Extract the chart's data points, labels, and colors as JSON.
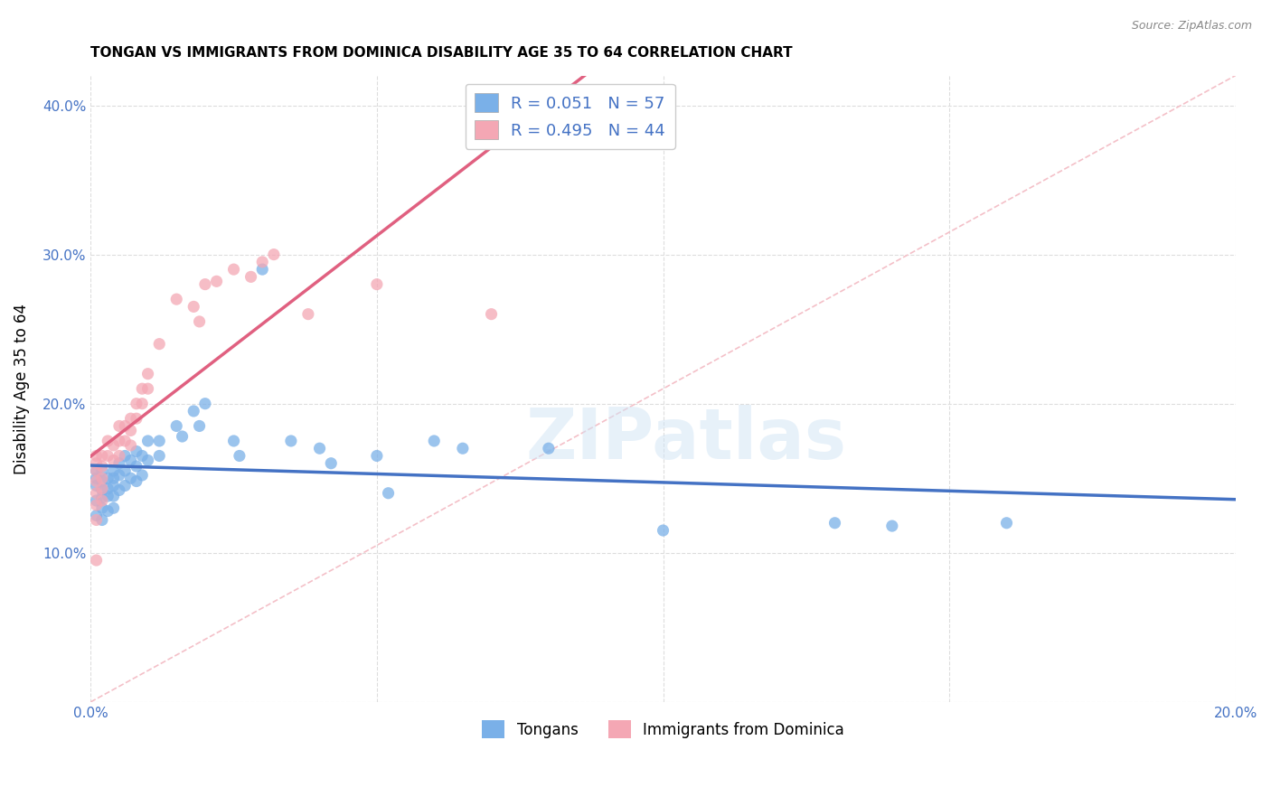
{
  "title": "TONGAN VS IMMIGRANTS FROM DOMINICA DISABILITY AGE 35 TO 64 CORRELATION CHART",
  "source": "Source: ZipAtlas.com",
  "ylabel": "Disability Age 35 to 64",
  "xmin": 0.0,
  "xmax": 0.2,
  "ymin": 0.0,
  "ymax": 0.42,
  "legend_label1": "Tongans",
  "legend_label2": "Immigrants from Dominica",
  "r1": "0.051",
  "n1": "57",
  "r2": "0.495",
  "n2": "44",
  "blue_color": "#7ab0e8",
  "pink_color": "#f4a7b4",
  "blue_line_color": "#4472c4",
  "pink_line_color": "#e06080",
  "diagonal_color": "#cccccc",
  "tongans_x": [
    0.001,
    0.001,
    0.001,
    0.001,
    0.001,
    0.002,
    0.002,
    0.002,
    0.002,
    0.002,
    0.002,
    0.003,
    0.003,
    0.003,
    0.003,
    0.004,
    0.004,
    0.004,
    0.004,
    0.004,
    0.005,
    0.005,
    0.005,
    0.006,
    0.006,
    0.006,
    0.007,
    0.007,
    0.008,
    0.008,
    0.008,
    0.009,
    0.009,
    0.01,
    0.01,
    0.012,
    0.012,
    0.015,
    0.016,
    0.018,
    0.019,
    0.02,
    0.025,
    0.026,
    0.03,
    0.035,
    0.04,
    0.042,
    0.05,
    0.052,
    0.06,
    0.065,
    0.08,
    0.1,
    0.13,
    0.14,
    0.16
  ],
  "tongans_y": [
    0.155,
    0.15,
    0.145,
    0.135,
    0.125,
    0.155,
    0.148,
    0.142,
    0.137,
    0.13,
    0.122,
    0.15,
    0.143,
    0.138,
    0.128,
    0.155,
    0.15,
    0.145,
    0.138,
    0.13,
    0.16,
    0.152,
    0.142,
    0.165,
    0.155,
    0.145,
    0.162,
    0.15,
    0.168,
    0.158,
    0.148,
    0.165,
    0.152,
    0.175,
    0.162,
    0.175,
    0.165,
    0.185,
    0.178,
    0.195,
    0.185,
    0.2,
    0.175,
    0.165,
    0.29,
    0.175,
    0.17,
    0.16,
    0.165,
    0.14,
    0.175,
    0.17,
    0.17,
    0.115,
    0.12,
    0.118,
    0.12
  ],
  "dominica_x": [
    0.001,
    0.001,
    0.001,
    0.001,
    0.001,
    0.001,
    0.001,
    0.001,
    0.002,
    0.002,
    0.002,
    0.002,
    0.002,
    0.003,
    0.003,
    0.004,
    0.004,
    0.005,
    0.005,
    0.005,
    0.006,
    0.006,
    0.007,
    0.007,
    0.007,
    0.008,
    0.008,
    0.009,
    0.009,
    0.01,
    0.01,
    0.012,
    0.015,
    0.018,
    0.019,
    0.02,
    0.022,
    0.025,
    0.028,
    0.03,
    0.032,
    0.038,
    0.05,
    0.07
  ],
  "dominica_y": [
    0.165,
    0.16,
    0.155,
    0.148,
    0.14,
    0.132,
    0.122,
    0.095,
    0.165,
    0.158,
    0.15,
    0.143,
    0.135,
    0.175,
    0.165,
    0.172,
    0.162,
    0.185,
    0.175,
    0.165,
    0.185,
    0.175,
    0.19,
    0.182,
    0.172,
    0.2,
    0.19,
    0.21,
    0.2,
    0.22,
    0.21,
    0.24,
    0.27,
    0.265,
    0.255,
    0.28,
    0.282,
    0.29,
    0.285,
    0.295,
    0.3,
    0.26,
    0.28,
    0.26
  ]
}
